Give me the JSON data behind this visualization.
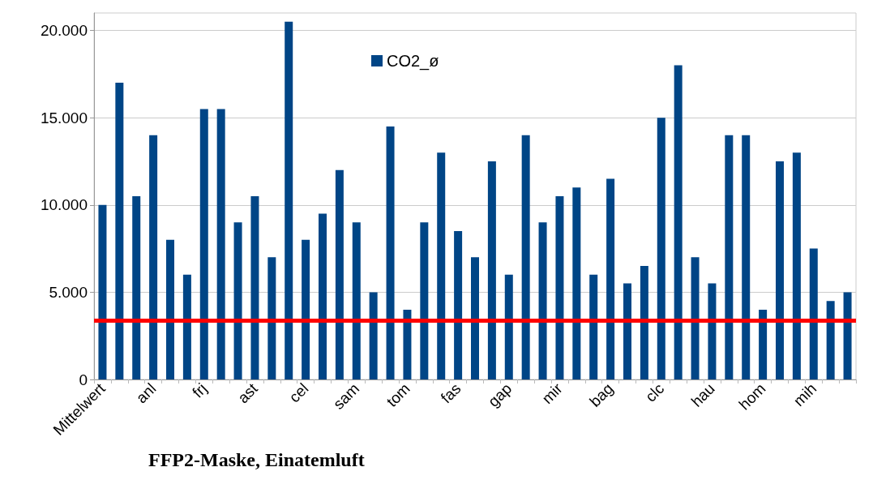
{
  "chart_data": {
    "type": "bar",
    "title": "FFP2-Maske, Einatemluft",
    "categories": [
      "Mittelwert",
      null,
      null,
      "anl",
      null,
      null,
      "frj",
      null,
      null,
      "ast",
      null,
      null,
      "cel",
      null,
      null,
      "sam",
      null,
      null,
      "tom",
      null,
      null,
      "fas",
      null,
      null,
      "gap",
      null,
      null,
      "mir",
      null,
      null,
      "bag",
      null,
      null,
      "clc",
      null,
      null,
      "hau",
      null,
      null,
      "hom",
      null,
      null,
      "mih",
      null,
      null
    ],
    "series": [
      {
        "name": "CO2_ø",
        "color": "#004586",
        "values": [
          10000,
          17000,
          10500,
          14000,
          8000,
          6000,
          15500,
          15500,
          9000,
          10500,
          7000,
          20500,
          8000,
          9500,
          12000,
          9000,
          5000,
          14500,
          4000,
          9000,
          13000,
          8500,
          7000,
          12500,
          6000,
          14000,
          9000,
          10500,
          11000,
          6000,
          11500,
          5500,
          6500,
          15000,
          18000,
          7000,
          5500,
          14000,
          14000,
          4000,
          12500,
          13000,
          7500,
          4500,
          5000
        ]
      }
    ],
    "ylim": [
      0,
      21000
    ],
    "yticks": [
      0,
      {
        "value": 5000,
        "label": "5.000"
      },
      {
        "value": 10000,
        "label": "10.000"
      },
      {
        "value": 15000,
        "label": "15.000"
      },
      {
        "value": 20000,
        "label": "20.000"
      }
    ],
    "ref_lines": [
      {
        "axis": "y",
        "value": 3400,
        "color": "#ff0000"
      }
    ],
    "grid": "y",
    "legend": "top"
  }
}
